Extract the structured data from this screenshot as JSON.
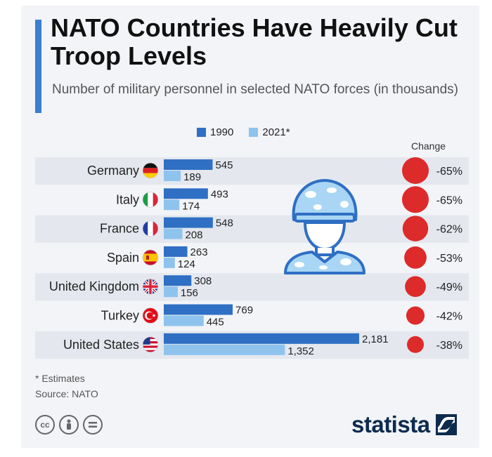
{
  "header": {
    "title": "NATO Countries Have Heavily Cut Troop Levels",
    "subtitle": "Number of military personnel in selected NATO forces (in thousands)"
  },
  "change_header": "Change",
  "footer": {
    "note": "* Estimates",
    "source": "Source: NATO",
    "brand": "statista"
  },
  "colors": {
    "series_1990": "#2f6fc4",
    "series_2021": "#8ec3ee",
    "change_marker": "#dd2a2a",
    "row_alt": "#e4e8ee"
  },
  "icons": [
    "soldier-icon",
    "creative-commons-icon",
    "attribution-icon",
    "no-derivatives-icon",
    "statista-logo-icon"
  ],
  "chart_data": {
    "type": "bar",
    "orientation": "horizontal",
    "categories": [
      "Germany",
      "Italy",
      "France",
      "Spain",
      "United Kingdom",
      "Turkey",
      "United States"
    ],
    "series": [
      {
        "name": "1990",
        "values": [
          545,
          493,
          548,
          263,
          308,
          769,
          2181
        ],
        "labels": [
          "545",
          "493",
          "548",
          "263",
          "308",
          "769",
          "2,181"
        ]
      },
      {
        "name": "2021*",
        "values": [
          189,
          174,
          208,
          124,
          156,
          445,
          1352
        ],
        "labels": [
          "189",
          "174",
          "208",
          "124",
          "156",
          "445",
          "1,352"
        ]
      }
    ],
    "change": [
      "-65%",
      "-65%",
      "-62%",
      "-53%",
      "-49%",
      "-42%",
      "-38%"
    ],
    "change_values": [
      -65,
      -65,
      -62,
      -53,
      -49,
      -42,
      -38
    ],
    "xlim": [
      0,
      2181
    ],
    "legend": "top",
    "grid": false
  }
}
